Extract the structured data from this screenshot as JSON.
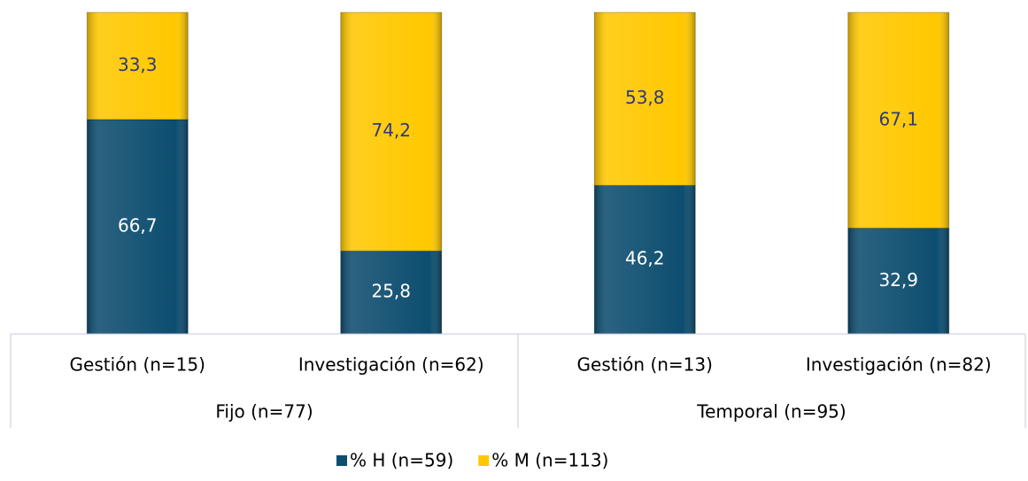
{
  "chart_data": {
    "type": "stacked_bar",
    "categories": [
      "Gestión (n=15)",
      "Investigación (n=62)",
      "Gestión (n=13)",
      "Investigación (n=82)"
    ],
    "groups": [
      "Fijo (n=77)",
      "Temporal (n=95)"
    ],
    "series": [
      {
        "name": "% H (n=59)",
        "color": "#0d4d6f",
        "label_color": "#ffffff",
        "values": [
          66.7,
          25.8,
          46.2,
          32.9
        ],
        "value_labels": [
          "66,7",
          "25,8",
          "46,2",
          "32,9"
        ]
      },
      {
        "name": "% M (n=113)",
        "color": "#ffc800",
        "label_color": "#2e3a78",
        "values": [
          33.3,
          74.2,
          53.8,
          67.1
        ],
        "value_labels": [
          "33,3",
          "74,2",
          "53,8",
          "67,1"
        ]
      }
    ],
    "legend": "bottom"
  }
}
